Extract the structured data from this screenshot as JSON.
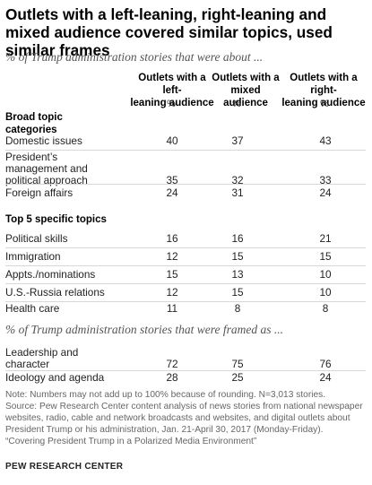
{
  "title": "Outlets with a left-leaning, right-leaning and mixed audience covered similar topics, used similar frames",
  "subtitle1": "% of Trump administration stories that were about ...",
  "columns": [
    {
      "line1": "Outlets with a left-",
      "line2": "leaning audience"
    },
    {
      "line1": "Outlets with a",
      "line2": "mixed audience"
    },
    {
      "line1": "Outlets with a right-",
      "line2": "leaning audience"
    }
  ],
  "pct_sign": "%",
  "section_broad": {
    "line1": "Broad topic",
    "line2": "categories"
  },
  "broad_rows": [
    {
      "label": "Domestic issues",
      "left": "40",
      "mixed": "37",
      "right": "43"
    },
    {
      "label1": "President’s",
      "label2": "management and",
      "label3": "political approach",
      "left": "35",
      "mixed": "32",
      "right": "33"
    },
    {
      "label": "Foreign affairs",
      "left": "24",
      "mixed": "31",
      "right": "24"
    }
  ],
  "section_top5": "Top 5 specific topics",
  "topic_rows": [
    {
      "label": "Political skills",
      "left": "16",
      "mixed": "16",
      "right": "21"
    },
    {
      "label": "Immigration",
      "left": "12",
      "mixed": "15",
      "right": "15"
    },
    {
      "label": "Appts./nominations",
      "left": "15",
      "mixed": "13",
      "right": "10"
    },
    {
      "label": "U.S.-Russia relations",
      "left": "12",
      "mixed": "15",
      "right": "10"
    },
    {
      "label": "Health care",
      "left": "11",
      "mixed": "8",
      "right": "8"
    }
  ],
  "subtitle2": "% of Trump administration stories that were framed as ...",
  "frame_rows": [
    {
      "label1": "Leadership and",
      "label2": "character",
      "left": "72",
      "mixed": "75",
      "right": "76"
    },
    {
      "label": "Ideology and agenda",
      "left": "28",
      "mixed": "25",
      "right": "24"
    }
  ],
  "notes": [
    "Note: Numbers may not add up to 100% because of rounding. N=3,013 stories.",
    "Source: Pew Research Center content analysis of news stories from national newspaper",
    "websites, radio, cable and network broadcasts and websites, and digital outlets about",
    "President Trump or his administration, Jan. 21-April 30, 2017 (Monday-Friday).",
    "“Covering President Trump in a Polarized Media Environment”"
  ],
  "footer": "PEW RESEARCH CENTER"
}
